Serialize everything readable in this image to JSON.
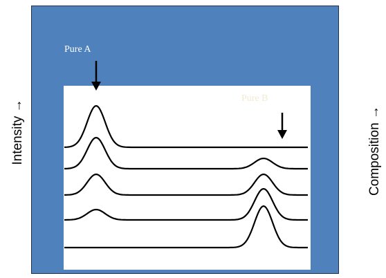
{
  "labels": {
    "y_axis": "Intensity",
    "y_axis_arrow": "→",
    "right_axis": "Composition",
    "right_axis_arrow": "→",
    "pure_a": "Pure A",
    "pure_b": "Pure B"
  },
  "colors": {
    "frame": "#4f81bd",
    "panel": "#ffffff",
    "trace": "#000000"
  },
  "spectra": [
    {
      "peak_a": 1.0,
      "peak_b": 0.0
    },
    {
      "peak_a": 0.75,
      "peak_b": 0.25
    },
    {
      "peak_a": 0.5,
      "peak_b": 0.5
    },
    {
      "peak_a": 0.25,
      "peak_b": 0.75
    },
    {
      "peak_a": 0.0,
      "peak_b": 1.0
    }
  ]
}
